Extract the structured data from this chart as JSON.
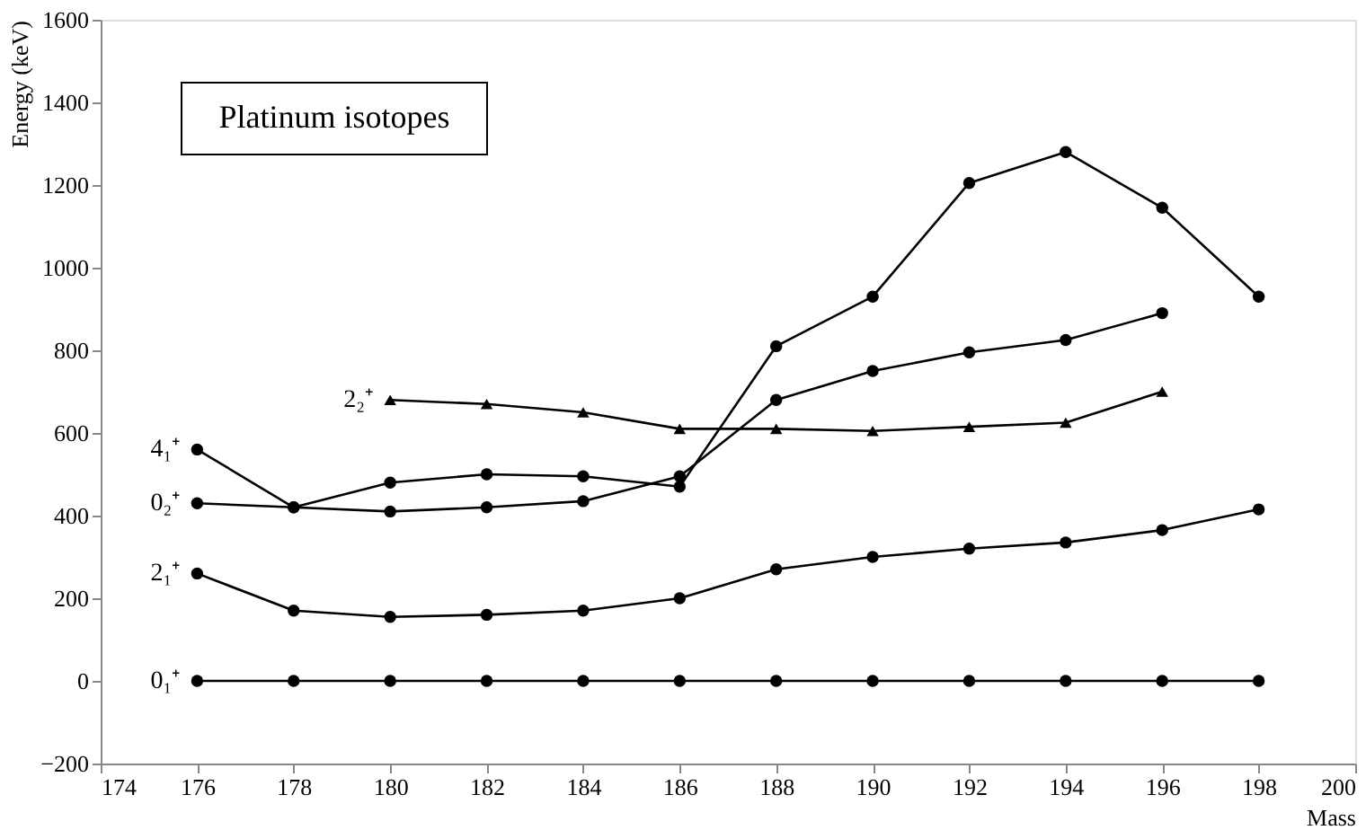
{
  "chart_data": {
    "type": "line",
    "title": "Platinum isotopes",
    "xlabel": "Mass",
    "ylabel": "Energy (keV)",
    "xlim": [
      174,
      200
    ],
    "xticks": [
      174,
      176,
      178,
      180,
      182,
      184,
      186,
      188,
      190,
      192,
      194,
      196,
      198,
      200
    ],
    "ylim": [
      -200,
      1600
    ],
    "yticks": [
      -200,
      0,
      200,
      400,
      600,
      800,
      1000,
      1200,
      1400,
      1600
    ],
    "grid": false,
    "legend": false,
    "line_style": "solid",
    "series": [
      {
        "name": "0₁⁺",
        "color": "#000000",
        "marker": "circle",
        "x": [
          176,
          178,
          180,
          182,
          184,
          186,
          188,
          190,
          192,
          194,
          196,
          198
        ],
        "values": [
          0,
          0,
          0,
          0,
          0,
          0,
          0,
          0,
          0,
          0,
          0,
          0
        ]
      },
      {
        "name": "2₁⁺",
        "color": "#000000",
        "marker": "circle",
        "x": [
          176,
          178,
          180,
          182,
          184,
          186,
          188,
          190,
          192,
          194,
          196,
          198
        ],
        "values": [
          260,
          170,
          155,
          160,
          170,
          200,
          270,
          300,
          320,
          335,
          365,
          415
        ]
      },
      {
        "name": "0₂⁺",
        "color": "#000000",
        "marker": "circle",
        "x": [
          176,
          178,
          180,
          182,
          184,
          186,
          188,
          190,
          192,
          194,
          196,
          198
        ],
        "values": [
          430,
          420,
          480,
          500,
          495,
          470,
          810,
          930,
          1205,
          1280,
          1145,
          930
        ]
      },
      {
        "name": "4₁⁺",
        "color": "#000000",
        "marker": "circle",
        "x": [
          176,
          178,
          180,
          182,
          184,
          186,
          188,
          190,
          192,
          194,
          196
        ],
        "values": [
          560,
          420,
          410,
          420,
          435,
          495,
          680,
          750,
          795,
          825,
          890
        ]
      },
      {
        "name": "2₂⁺",
        "color": "#000000",
        "marker": "triangle",
        "x": [
          180,
          182,
          184,
          186,
          188,
          190,
          192,
          194,
          196
        ],
        "values": [
          680,
          670,
          650,
          610,
          610,
          605,
          615,
          625,
          700
        ]
      }
    ]
  }
}
